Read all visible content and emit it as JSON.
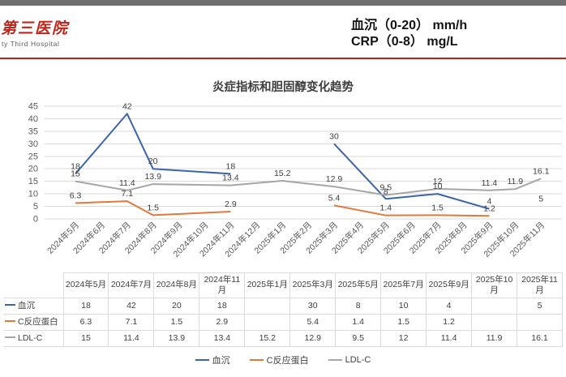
{
  "page": {
    "logo": {
      "cn": "第三医院",
      "en": "ty Third Hospital"
    },
    "header": {
      "line1": "血沉（0-20） mm/h",
      "line2": "CRP（0-8） mg/L"
    }
  },
  "chart_data": {
    "type": "line",
    "title": "炎症指标和胆固醇变化趋势",
    "x_categories": [
      "2024年5月",
      "2024年6月",
      "2024年7月",
      "2024年8月",
      "2024年9月",
      "2024年10月",
      "2024年11月",
      "2024年12月",
      "2025年1月",
      "2025年2月",
      "2025年3月",
      "2025年4月",
      "2025年5月",
      "2025年6月",
      "2025年7月",
      "2025年8月",
      "2025年9月",
      "2025年10月",
      "2025年11月"
    ],
    "data_columns": [
      "2024年5月",
      "2024年7月",
      "2024年8月",
      "2024年11月",
      "2025年1月",
      "2025年3月",
      "2025年5月",
      "2025年7月",
      "2025年9月",
      "2025年10月",
      "2025年11月"
    ],
    "series": [
      {
        "name": "血沉",
        "color": "#3c64a8",
        "values": [
          18,
          42,
          20,
          18,
          null,
          30,
          8,
          10,
          4,
          null,
          5
        ]
      },
      {
        "name": "C反应蛋白",
        "color": "#e2793a",
        "values": [
          6.3,
          7.1,
          1.5,
          2.9,
          null,
          5.4,
          1.4,
          1.5,
          1.2,
          null,
          null
        ]
      },
      {
        "name": "LDL-C",
        "color": "#a6a6a6",
        "values": [
          15,
          11.4,
          13.9,
          13.4,
          15.2,
          12.9,
          9.5,
          12,
          11.4,
          11.9,
          16.1
        ]
      }
    ],
    "ylim": [
      0,
      45
    ],
    "y_tick_step": 5,
    "grid": true,
    "legend_position": "bottom",
    "show_data_table": true,
    "colors": {
      "grid": "#d9d9d9",
      "axis_text": "#595959",
      "label_text": "#3f3f3f"
    }
  }
}
